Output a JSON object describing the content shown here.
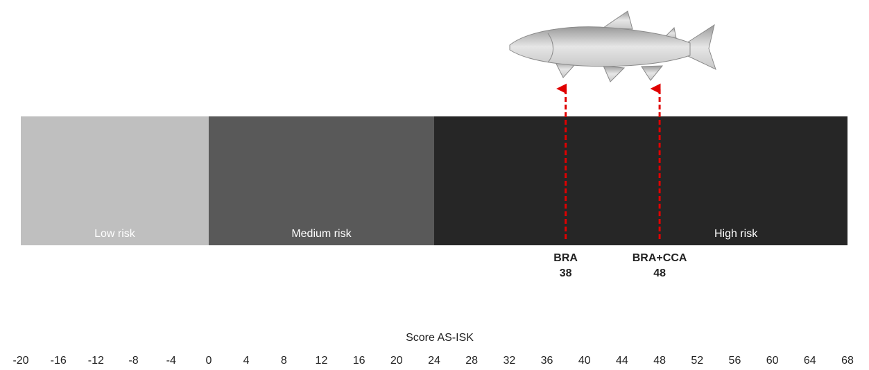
{
  "chart_data": {
    "type": "risk-scale",
    "xlabel": "Score AS-ISK",
    "xlim": [
      -20,
      68
    ],
    "xticks": [
      -20,
      -16,
      -12,
      -8,
      -4,
      0,
      4,
      8,
      12,
      16,
      20,
      24,
      28,
      32,
      36,
      40,
      44,
      48,
      52,
      56,
      60,
      64,
      68
    ],
    "bands": [
      {
        "name": "Low risk",
        "from": -20,
        "to": 0,
        "color": "#bfbfbf"
      },
      {
        "name": "Medium risk",
        "from": 0,
        "to": 24,
        "color": "#595959"
      },
      {
        "name": "High risk",
        "from": 24,
        "to": 68,
        "color": "#262626"
      }
    ],
    "markers": [
      {
        "name": "BRA",
        "value": 38
      },
      {
        "name": "BRA+CCA",
        "value": 48
      }
    ],
    "marker_color": "#e00000"
  }
}
